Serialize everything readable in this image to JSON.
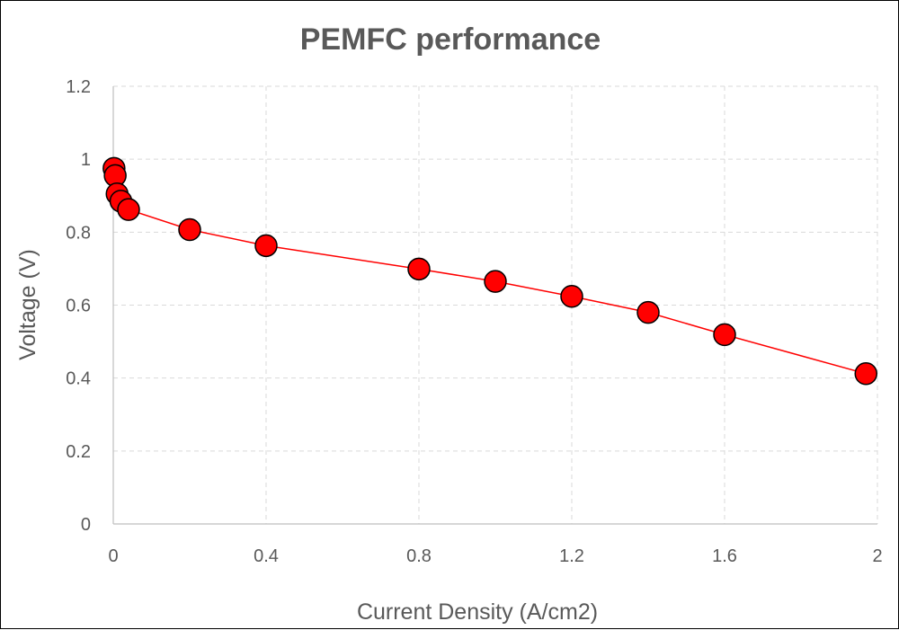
{
  "chart_data": {
    "type": "scatter",
    "title": "PEMFC performance",
    "xlabel": "Current Density (A/cm2)",
    "ylabel": "Voltage (V)",
    "xlim": [
      0,
      2
    ],
    "ylim": [
      0,
      1.2
    ],
    "x_ticks": [
      "0",
      "0.4",
      "0.8",
      "1.2",
      "1.6",
      "2"
    ],
    "y_ticks": [
      "0",
      "0.2",
      "0.4",
      "0.6",
      "0.8",
      "1",
      "1.2"
    ],
    "grid": true,
    "legend": "none",
    "series": [
      {
        "x": [
          0.002,
          0.005,
          0.01,
          0.02,
          0.04,
          0.2,
          0.4,
          0.8,
          1.0,
          1.2,
          1.4,
          1.6,
          1.97
        ],
        "y": [
          0.975,
          0.955,
          0.905,
          0.885,
          0.862,
          0.807,
          0.763,
          0.699,
          0.665,
          0.624,
          0.58,
          0.519,
          0.412
        ]
      }
    ],
    "colors": {
      "marker_fill": "#ff0000",
      "marker_edge": "#000000",
      "line": "#ff0000",
      "grid": "#d9d9d9",
      "text": "#595959"
    }
  }
}
